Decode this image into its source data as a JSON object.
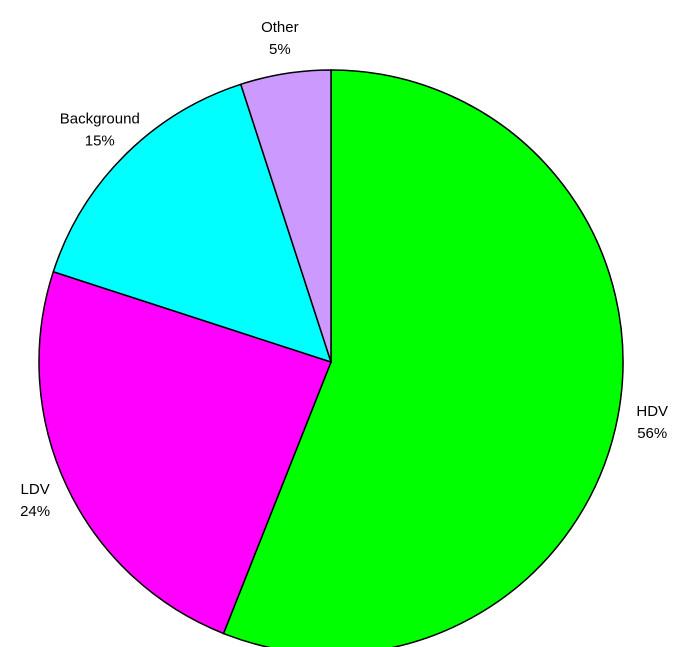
{
  "chart_data": {
    "type": "pie",
    "categories": [
      "HDV",
      "LDV",
      "Background",
      "Other"
    ],
    "values": [
      56,
      24,
      15,
      5
    ],
    "value_labels": [
      "56%",
      "24%",
      "15%",
      "5%"
    ],
    "colors": [
      "#00ff00",
      "#ff00ff",
      "#00ffff",
      "#cc99ff"
    ]
  }
}
